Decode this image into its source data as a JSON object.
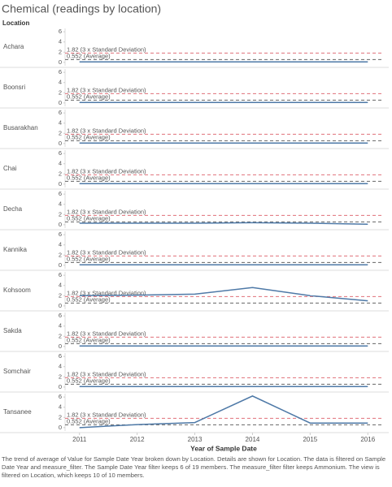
{
  "chart_data": {
    "type": "line",
    "title": "Chemical (readings by location)",
    "row_header": "Location",
    "x_label": "Year of Sample Date",
    "note": "The trend of average of Value for Sample Date Year broken down by Location.  Details are shown for Location. The data is filtered on Sample Date Year and measure_filter. The Sample Date Year filter keeps 6 of 19 members. The measure_filter filter keeps Ammonium. The view is filtered on Location, which keeps 10 of 10 members.",
    "x": [
      2011,
      2012,
      2013,
      2014,
      2015,
      2016
    ],
    "xlim": [
      2010.75,
      2016.25
    ],
    "xticks": [
      2011,
      2012,
      2013,
      2014,
      2015,
      2016
    ],
    "ylim": [
      -0.5,
      6.5
    ],
    "yticks": [
      0,
      2,
      4,
      6
    ],
    "reference_lines": [
      {
        "value": 1.82,
        "label": "1.82 (3 x Standard Deviation)",
        "color": "#e0707a"
      },
      {
        "value": 0.552,
        "label": "0.552 (Average)",
        "color": "#666666"
      }
    ],
    "series": [
      {
        "name": "Achara",
        "color": "#4e79a7",
        "values": [
          0.1,
          0.1,
          0.1,
          0.1,
          0.1,
          0.1
        ]
      },
      {
        "name": "Boonsri",
        "color": "#4e79a7",
        "values": [
          0.1,
          0.1,
          0.1,
          0.1,
          0.1,
          0.1
        ]
      },
      {
        "name": "Busarakhan",
        "color": "#4e79a7",
        "values": [
          0.1,
          0.1,
          0.1,
          0.1,
          0.1,
          0.1
        ]
      },
      {
        "name": "Chai",
        "color": "#4e79a7",
        "values": [
          0.1,
          0.1,
          0.1,
          0.1,
          0.1,
          0.1
        ]
      },
      {
        "name": "Decha",
        "color": "#4e79a7",
        "values": [
          0.3,
          0.3,
          0.3,
          0.4,
          0.3,
          0.1
        ]
      },
      {
        "name": "Kannika",
        "color": "#4e79a7",
        "values": [
          0.1,
          0.1,
          0.1,
          0.1,
          0.1,
          0.1
        ]
      },
      {
        "name": "Kohsoom",
        "color": "#4e79a7",
        "values": [
          2.0,
          2.1,
          2.3,
          3.6,
          2.0,
          1.0
        ]
      },
      {
        "name": "Sakda",
        "color": "#4e79a7",
        "values": [
          0.1,
          0.1,
          0.1,
          0.1,
          0.1,
          0.1
        ]
      },
      {
        "name": "Somchair",
        "color": "#4e79a7",
        "values": [
          0.1,
          0.1,
          0.1,
          0.1,
          0.1,
          0.1
        ]
      },
      {
        "name": "Tansanee",
        "color": "#4e79a7",
        "values": [
          0.0,
          0.6,
          1.0,
          6.2,
          0.9,
          0.9
        ]
      }
    ]
  }
}
